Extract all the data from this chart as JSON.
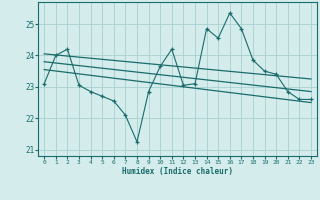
{
  "xlabel": "Humidex (Indice chaleur)",
  "bg_color": "#d4ecec",
  "grid_color": "#a8d0d0",
  "line_color": "#1a6b6b",
  "xlim": [
    -0.5,
    23.5
  ],
  "ylim": [
    20.8,
    25.7
  ],
  "yticks": [
    21,
    22,
    23,
    24,
    25
  ],
  "xticks": [
    0,
    1,
    2,
    3,
    4,
    5,
    6,
    7,
    8,
    9,
    10,
    11,
    12,
    13,
    14,
    15,
    16,
    17,
    18,
    19,
    20,
    21,
    22,
    23
  ],
  "series1_x": [
    0,
    1,
    2,
    3,
    4,
    5,
    6,
    7,
    8,
    9,
    10,
    11,
    12,
    13,
    14,
    15,
    16,
    17,
    18,
    19,
    20,
    21,
    22,
    23
  ],
  "series1_y": [
    23.1,
    24.0,
    24.2,
    23.05,
    22.85,
    22.7,
    22.55,
    22.1,
    21.25,
    22.85,
    23.65,
    24.2,
    23.05,
    23.1,
    24.85,
    24.55,
    25.35,
    24.85,
    23.85,
    23.5,
    23.4,
    22.85,
    22.6,
    22.6
  ],
  "trend1_x": [
    0,
    23
  ],
  "trend1_y": [
    24.05,
    23.25
  ],
  "trend2_x": [
    0,
    23
  ],
  "trend2_y": [
    23.8,
    22.85
  ],
  "trend3_x": [
    0,
    23
  ],
  "trend3_y": [
    23.55,
    22.5
  ]
}
